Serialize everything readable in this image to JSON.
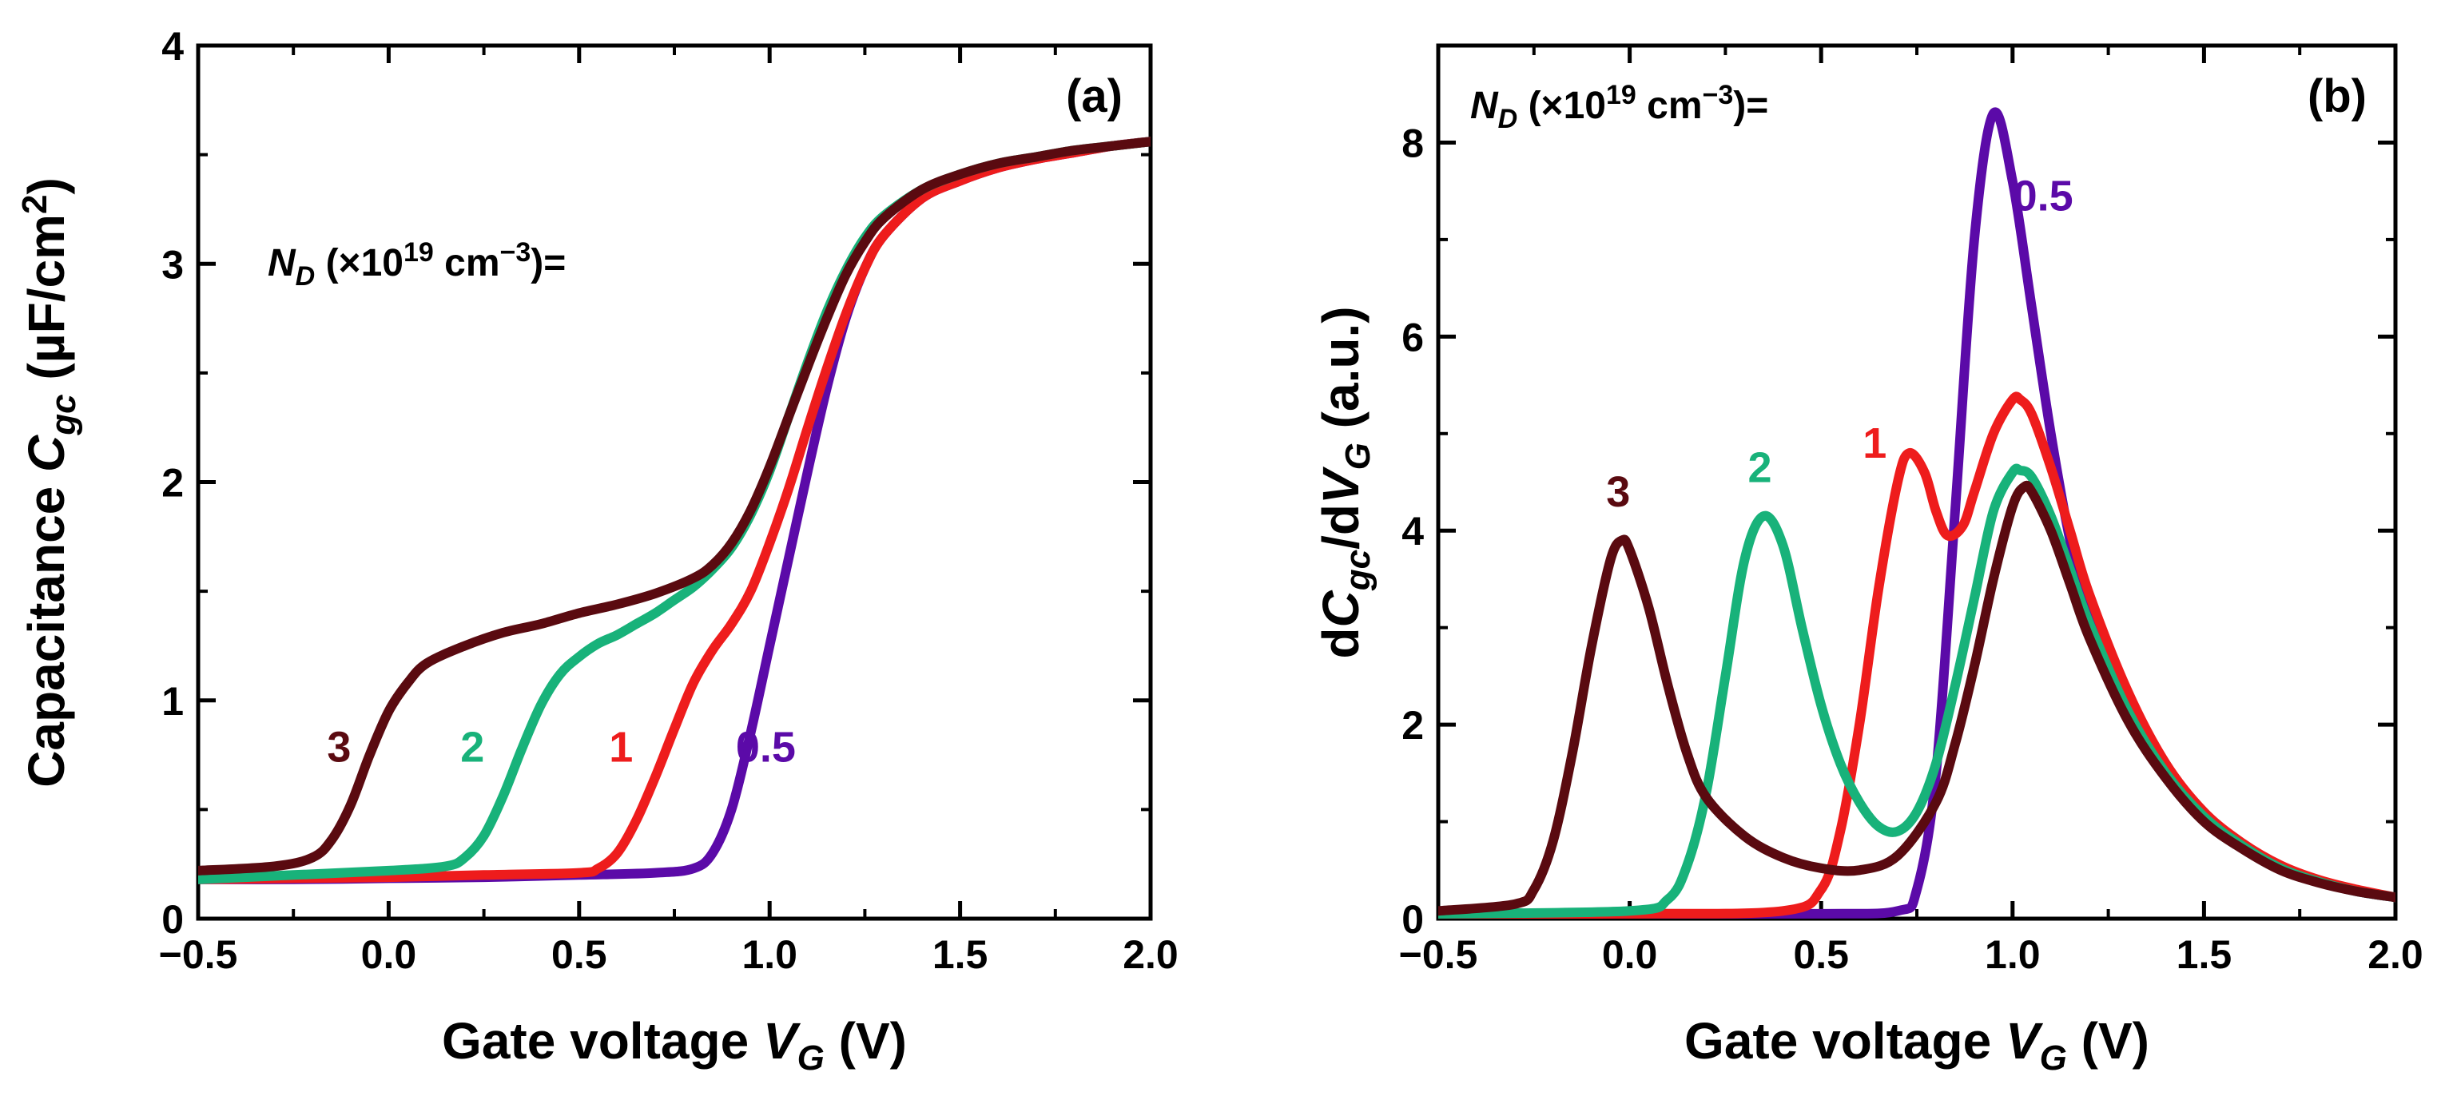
{
  "colors": {
    "0.5": "#5b0aa8",
    "1": "#ee1c1c",
    "2": "#18b27a",
    "3": "#5a0a10"
  },
  "chart_data": [
    {
      "type": "line",
      "panel_label": "(a)",
      "xlabel": {
        "main": "Gate voltage ",
        "var": "V",
        "sub": "G",
        "unit": " (V)"
      },
      "ylabel": {
        "main": "Capacitance ",
        "var": "C",
        "sub": "gc",
        "unit": " (µF/cm",
        "sup": "2",
        "close": ")"
      },
      "legend": {
        "var": "N",
        "sub": "D",
        "mid": " (×10",
        "sup": "19",
        "unit": " cm",
        "sup2": "−3",
        "end": ")="
      },
      "xlim": [
        -0.5,
        2.0
      ],
      "ylim": [
        0,
        4
      ],
      "xticks": [
        -0.5,
        0.0,
        0.5,
        1.0,
        1.5,
        2.0
      ],
      "xtick_labels": [
        "−0.5",
        "0.0",
        "0.5",
        "1.0",
        "1.5",
        "2.0"
      ],
      "yticks": [
        0,
        1,
        2,
        3,
        4
      ],
      "ytick_labels": [
        "0",
        "1",
        "2",
        "3",
        "4"
      ],
      "curve_labels": [
        {
          "text": "3",
          "series": "3",
          "x": -0.13,
          "y": 0.72
        },
        {
          "text": "2",
          "series": "2",
          "x": 0.22,
          "y": 0.72
        },
        {
          "text": "1",
          "series": "1",
          "x": 0.61,
          "y": 0.72
        },
        {
          "text": "0.5",
          "series": "0.5",
          "x": 0.99,
          "y": 0.72
        }
      ],
      "series": [
        {
          "name": "0.5",
          "x": [
            -0.5,
            -0.25,
            0,
            0.25,
            0.5,
            0.7,
            0.8,
            0.85,
            0.9,
            0.95,
            1.0,
            1.05,
            1.1,
            1.15,
            1.2,
            1.25,
            1.3,
            1.4,
            1.5,
            1.6,
            1.7,
            1.8,
            1.9,
            2.0
          ],
          "y": [
            0.18,
            0.18,
            0.185,
            0.19,
            0.2,
            0.21,
            0.23,
            0.3,
            0.5,
            0.85,
            1.25,
            1.65,
            2.05,
            2.43,
            2.75,
            2.98,
            3.13,
            3.3,
            3.38,
            3.44,
            3.48,
            3.51,
            3.54,
            3.56
          ]
        },
        {
          "name": "1",
          "x": [
            -0.5,
            -0.25,
            0,
            0.25,
            0.5,
            0.55,
            0.6,
            0.65,
            0.7,
            0.75,
            0.8,
            0.85,
            0.9,
            0.95,
            1.0,
            1.05,
            1.1,
            1.15,
            1.2,
            1.25,
            1.3,
            1.4,
            1.5,
            1.6,
            1.7,
            1.8,
            1.9,
            2.0
          ],
          "y": [
            0.18,
            0.185,
            0.19,
            0.2,
            0.21,
            0.23,
            0.3,
            0.45,
            0.65,
            0.87,
            1.08,
            1.23,
            1.35,
            1.5,
            1.72,
            1.97,
            2.25,
            2.52,
            2.77,
            2.98,
            3.13,
            3.3,
            3.38,
            3.44,
            3.48,
            3.51,
            3.54,
            3.56
          ]
        },
        {
          "name": "2",
          "x": [
            -0.5,
            -0.25,
            0,
            0.15,
            0.2,
            0.25,
            0.3,
            0.35,
            0.4,
            0.45,
            0.5,
            0.55,
            0.6,
            0.65,
            0.7,
            0.75,
            0.8,
            0.85,
            0.9,
            0.95,
            1.0,
            1.05,
            1.1,
            1.15,
            1.2,
            1.25,
            1.3,
            1.4,
            1.5,
            1.6,
            1.7,
            1.8,
            1.9,
            2.0
          ],
          "y": [
            0.18,
            0.2,
            0.22,
            0.24,
            0.28,
            0.38,
            0.56,
            0.78,
            0.98,
            1.12,
            1.2,
            1.26,
            1.3,
            1.35,
            1.4,
            1.46,
            1.52,
            1.6,
            1.7,
            1.85,
            2.05,
            2.3,
            2.55,
            2.78,
            2.97,
            3.12,
            3.22,
            3.34,
            3.41,
            3.46,
            3.49,
            3.52,
            3.54,
            3.56
          ]
        },
        {
          "name": "3",
          "x": [
            -0.5,
            -0.3,
            -0.2,
            -0.15,
            -0.1,
            -0.05,
            0,
            0.05,
            0.1,
            0.2,
            0.3,
            0.4,
            0.5,
            0.6,
            0.7,
            0.8,
            0.85,
            0.9,
            0.95,
            1.0,
            1.05,
            1.1,
            1.15,
            1.2,
            1.25,
            1.3,
            1.4,
            1.5,
            1.6,
            1.7,
            1.8,
            1.9,
            2.0
          ],
          "y": [
            0.22,
            0.24,
            0.28,
            0.36,
            0.52,
            0.75,
            0.95,
            1.08,
            1.17,
            1.25,
            1.31,
            1.35,
            1.4,
            1.44,
            1.49,
            1.56,
            1.62,
            1.72,
            1.87,
            2.07,
            2.3,
            2.53,
            2.75,
            2.95,
            3.1,
            3.21,
            3.34,
            3.41,
            3.46,
            3.49,
            3.52,
            3.54,
            3.56
          ]
        }
      ]
    },
    {
      "type": "line",
      "panel_label": "(b)",
      "xlabel": {
        "main": "Gate voltage ",
        "var": "V",
        "sub": "G",
        "unit": " (V)"
      },
      "ylabel": {
        "d1": "d",
        "var": "C",
        "sub": "gc",
        "mid": "/d",
        "var2": "V",
        "sub2": "G",
        "unit": " (a.u.)"
      },
      "legend": {
        "var": "N",
        "sub": "D",
        "mid": " (×10",
        "sup": "19",
        "unit": " cm",
        "sup2": "−3",
        "end": ")="
      },
      "xlim": [
        -0.5,
        2.0
      ],
      "ylim": [
        0,
        9
      ],
      "xticks": [
        -0.5,
        0.0,
        0.5,
        1.0,
        1.5,
        2.0
      ],
      "xtick_labels": [
        "−0.5",
        "0.0",
        "0.5",
        "1.0",
        "1.5",
        "2.0"
      ],
      "yticks": [
        0,
        2,
        4,
        6,
        8
      ],
      "ytick_labels": [
        "0",
        "2",
        "4",
        "6",
        "8"
      ],
      "curve_labels": [
        {
          "text": "3",
          "series": "3",
          "x": -0.03,
          "y": 4.25
        },
        {
          "text": "2",
          "series": "2",
          "x": 0.34,
          "y": 4.5
        },
        {
          "text": "1",
          "series": "1",
          "x": 0.64,
          "y": 4.75
        },
        {
          "text": "0.5",
          "series": "0.5",
          "x": 1.08,
          "y": 7.3
        }
      ],
      "series": [
        {
          "name": "0.5",
          "x": [
            -0.5,
            0,
            0.5,
            0.7,
            0.75,
            0.8,
            0.85,
            0.9,
            0.95,
            1.0,
            1.05,
            1.1,
            1.15,
            1.2,
            1.3,
            1.4,
            1.5,
            1.6,
            1.7,
            1.8,
            1.9,
            2.0
          ],
          "y": [
            0.05,
            0.05,
            0.05,
            0.08,
            0.3,
            1.5,
            4.2,
            7.0,
            8.3,
            7.6,
            6.3,
            5.0,
            3.9,
            3.1,
            2.15,
            1.5,
            1.05,
            0.75,
            0.52,
            0.38,
            0.28,
            0.22
          ]
        },
        {
          "name": "1",
          "x": [
            -0.5,
            0,
            0.4,
            0.5,
            0.55,
            0.6,
            0.65,
            0.7,
            0.73,
            0.77,
            0.8,
            0.83,
            0.87,
            0.9,
            0.95,
            1.0,
            1.02,
            1.05,
            1.1,
            1.15,
            1.2,
            1.3,
            1.4,
            1.5,
            1.6,
            1.7,
            1.8,
            1.9,
            2.0
          ],
          "y": [
            0.05,
            0.05,
            0.08,
            0.3,
            0.9,
            2.0,
            3.4,
            4.5,
            4.8,
            4.6,
            4.2,
            3.95,
            4.05,
            4.4,
            5.0,
            5.35,
            5.35,
            5.2,
            4.65,
            4.0,
            3.35,
            2.35,
            1.6,
            1.1,
            0.78,
            0.55,
            0.4,
            0.3,
            0.22
          ]
        },
        {
          "name": "2",
          "x": [
            -0.5,
            0,
            0.1,
            0.15,
            0.2,
            0.25,
            0.3,
            0.35,
            0.4,
            0.45,
            0.5,
            0.55,
            0.6,
            0.65,
            0.7,
            0.75,
            0.8,
            0.85,
            0.9,
            0.95,
            1.0,
            1.02,
            1.05,
            1.1,
            1.15,
            1.2,
            1.3,
            1.4,
            1.5,
            1.6,
            1.7,
            1.8,
            1.9,
            2.0
          ],
          "y": [
            0.05,
            0.08,
            0.2,
            0.55,
            1.3,
            2.5,
            3.7,
            4.15,
            3.85,
            3.0,
            2.2,
            1.6,
            1.2,
            0.95,
            0.9,
            1.1,
            1.6,
            2.4,
            3.3,
            4.2,
            4.6,
            4.62,
            4.55,
            4.15,
            3.6,
            3.05,
            2.15,
            1.5,
            1.05,
            0.75,
            0.52,
            0.38,
            0.28,
            0.22
          ]
        },
        {
          "name": "3",
          "x": [
            -0.5,
            -0.3,
            -0.25,
            -0.2,
            -0.15,
            -0.1,
            -0.05,
            -0.02,
            0,
            0.05,
            0.1,
            0.15,
            0.2,
            0.3,
            0.4,
            0.5,
            0.6,
            0.7,
            0.8,
            0.85,
            0.9,
            0.95,
            1.0,
            1.03,
            1.05,
            1.1,
            1.15,
            1.2,
            1.3,
            1.4,
            1.5,
            1.6,
            1.7,
            1.8,
            1.9,
            2.0
          ],
          "y": [
            0.08,
            0.15,
            0.3,
            0.8,
            1.7,
            2.8,
            3.7,
            3.9,
            3.8,
            3.2,
            2.4,
            1.7,
            1.25,
            0.85,
            0.63,
            0.52,
            0.5,
            0.65,
            1.2,
            1.8,
            2.6,
            3.5,
            4.25,
            4.45,
            4.4,
            4.0,
            3.45,
            2.9,
            2.05,
            1.45,
            1.0,
            0.72,
            0.5,
            0.37,
            0.28,
            0.22
          ]
        }
      ]
    }
  ]
}
